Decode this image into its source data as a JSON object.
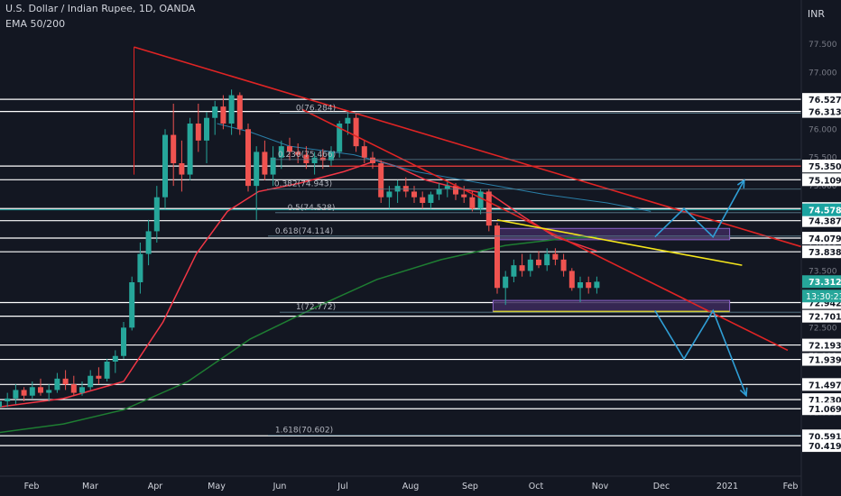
{
  "header": {
    "title": "U.S. Dollar / Indian Rupee, 1D, OANDA",
    "indicator": "EMA 50/200",
    "currency": "INR"
  },
  "colors": {
    "background": "#131722",
    "up": "#26a69a",
    "down": "#ef5350",
    "trendline": "#e02424",
    "ema50": "#f23645",
    "ema200": "#1e7d32",
    "level": "#ffffff",
    "fib_text": "#b2b5be",
    "yellow": "#f5e61b",
    "arrow": "#2f9ed5",
    "zone_fill": "#3d2a5c",
    "zone_border": "#8c64c8",
    "price_tag": "#26a69a",
    "level_tag_teal": "#1aa3a0",
    "level_tag_red": "#ef5350"
  },
  "chart_data": {
    "type": "candlestick",
    "y_axis_ticks": [
      77.5,
      77.0,
      76.5,
      76.0,
      75.5,
      75.0,
      74.5,
      74.0,
      73.5,
      73.0,
      72.5,
      72.0,
      71.5,
      71.0,
      70.5
    ],
    "ylim": [
      70.3,
      78.1
    ],
    "x_axis_labels": [
      "Feb",
      "Mar",
      "Apr",
      "May",
      "Jun",
      "Jul",
      "Aug",
      "Sep",
      "Oct",
      "Nov",
      "Dec",
      "2021",
      "Feb"
    ],
    "horizontal_levels": [
      76.527,
      76.313,
      75.35,
      75.109,
      74.601,
      74.387,
      74.079,
      73.838,
      72.942,
      72.701,
      72.193,
      71.939,
      71.497,
      71.23,
      71.069,
      70.591,
      70.419
    ],
    "colored_levels": [
      {
        "label": "74.578",
        "kind": "teal"
      },
      {
        "label": "75.350",
        "kind": "red"
      }
    ],
    "current_price": "73.312",
    "countdown": "13:30:23",
    "fib_levels": [
      {
        "label": "0(76.284)",
        "value": 76.284
      },
      {
        "label": "0.236(75.466)",
        "value": 75.466
      },
      {
        "label": "0.382(74.943)",
        "value": 74.943
      },
      {
        "label": "0.5(74.528)",
        "value": 74.528
      },
      {
        "label": "0.618(74.114)",
        "value": 74.114
      },
      {
        "label": "1(72.772)",
        "value": 72.772
      },
      {
        "label": "1.618(70.602)",
        "value": 70.602
      }
    ],
    "zones": [
      {
        "date_from": "2020-08-28",
        "date_to": "2020-12-18",
        "low": 74.05,
        "high": 74.25
      },
      {
        "date_from": "2020-08-26",
        "date_to": "2020-12-18",
        "low": 72.78,
        "high": 72.98
      }
    ],
    "trendlines": [
      {
        "color": "trendline",
        "from": {
          "date": "2020-03-06",
          "price": 77.45
        },
        "to": {
          "date": "2021-02-25",
          "price": 73.55
        }
      },
      {
        "color": "trendline",
        "from": {
          "date": "2020-05-26",
          "price": 76.35
        },
        "to": {
          "date": "2021-01-15",
          "price": 72.1
        }
      },
      {
        "color": "yellow",
        "from": {
          "date": "2020-08-28",
          "price": 74.4
        },
        "to": {
          "date": "2020-12-24",
          "price": 73.6
        }
      }
    ],
    "projections": [
      [
        [
          "2020-11-12",
          74.1
        ],
        [
          "2020-11-26",
          74.6
        ],
        [
          "2020-12-10",
          74.1
        ],
        [
          "2020-12-25",
          75.1
        ]
      ],
      [
        [
          "2020-11-12",
          72.8
        ],
        [
          "2020-11-26",
          71.95
        ],
        [
          "2020-12-10",
          72.8
        ],
        [
          "2020-12-26",
          71.3
        ]
      ]
    ],
    "ohlc": [
      [
        "2020-01-01",
        71.1,
        71.25,
        71.0,
        71.2
      ],
      [
        "2020-01-05",
        71.2,
        71.35,
        71.1,
        71.25
      ],
      [
        "2020-01-09",
        71.25,
        71.5,
        71.15,
        71.4
      ],
      [
        "2020-01-13",
        71.4,
        71.45,
        71.2,
        71.3
      ],
      [
        "2020-01-17",
        71.3,
        71.55,
        71.25,
        71.45
      ],
      [
        "2020-01-21",
        71.45,
        71.6,
        71.3,
        71.35
      ],
      [
        "2020-01-25",
        71.35,
        71.5,
        71.2,
        71.4
      ],
      [
        "2020-01-29",
        71.4,
        71.7,
        71.35,
        71.6
      ],
      [
        "2020-02-02",
        71.6,
        71.75,
        71.4,
        71.5
      ],
      [
        "2020-02-06",
        71.5,
        71.65,
        71.3,
        71.35
      ],
      [
        "2020-02-10",
        71.35,
        71.55,
        71.3,
        71.45
      ],
      [
        "2020-02-14",
        71.45,
        71.75,
        71.4,
        71.65
      ],
      [
        "2020-02-18",
        71.65,
        71.8,
        71.5,
        71.6
      ],
      [
        "2020-02-22",
        71.6,
        71.95,
        71.55,
        71.9
      ],
      [
        "2020-02-26",
        71.9,
        72.1,
        71.7,
        72.0
      ],
      [
        "2020-03-01",
        72.0,
        72.6,
        71.95,
        72.5
      ],
      [
        "2020-03-05",
        72.5,
        73.4,
        72.45,
        73.3
      ],
      [
        "2020-03-09",
        73.3,
        74.0,
        73.1,
        73.8
      ],
      [
        "2020-03-13",
        73.8,
        74.4,
        73.6,
        74.2
      ],
      [
        "2020-03-17",
        74.2,
        75.0,
        74.0,
        74.8
      ],
      [
        "2020-03-21",
        74.8,
        76.0,
        74.6,
        75.9
      ],
      [
        "2020-03-25",
        75.9,
        76.45,
        75.0,
        75.4
      ],
      [
        "2020-03-29",
        75.4,
        75.8,
        74.9,
        75.2
      ],
      [
        "2020-04-02",
        75.2,
        76.2,
        75.1,
        76.1
      ],
      [
        "2020-04-06",
        76.1,
        76.45,
        75.6,
        75.8
      ],
      [
        "2020-04-10",
        75.8,
        76.3,
        75.4,
        76.2
      ],
      [
        "2020-04-14",
        76.2,
        76.5,
        75.9,
        76.4
      ],
      [
        "2020-04-18",
        76.4,
        76.6,
        76.0,
        76.1
      ],
      [
        "2020-04-22",
        76.1,
        76.7,
        75.9,
        76.6
      ],
      [
        "2020-04-26",
        76.6,
        76.65,
        75.9,
        76.0
      ],
      [
        "2020-04-30",
        76.0,
        76.1,
        74.9,
        75.0
      ],
      [
        "2020-05-04",
        75.0,
        75.7,
        74.4,
        75.6
      ],
      [
        "2020-05-08",
        75.6,
        75.8,
        75.1,
        75.2
      ],
      [
        "2020-05-12",
        75.2,
        75.7,
        75.0,
        75.5
      ],
      [
        "2020-05-16",
        75.5,
        75.8,
        75.3,
        75.7
      ],
      [
        "2020-05-20",
        75.7,
        75.85,
        75.45,
        75.6
      ],
      [
        "2020-05-24",
        75.6,
        75.75,
        75.4,
        75.55
      ],
      [
        "2020-05-28",
        75.55,
        75.7,
        75.3,
        75.4
      ],
      [
        "2020-06-01",
        75.4,
        75.6,
        75.2,
        75.5
      ],
      [
        "2020-06-05",
        75.5,
        75.65,
        75.3,
        75.45
      ],
      [
        "2020-06-09",
        75.45,
        75.7,
        75.35,
        75.6
      ],
      [
        "2020-06-13",
        75.6,
        76.15,
        75.5,
        76.1
      ],
      [
        "2020-06-17",
        76.1,
        76.3,
        75.9,
        76.2
      ],
      [
        "2020-06-21",
        76.2,
        76.28,
        75.6,
        75.7
      ],
      [
        "2020-06-25",
        75.7,
        75.8,
        75.4,
        75.5
      ],
      [
        "2020-06-29",
        75.5,
        75.6,
        75.3,
        75.4
      ],
      [
        "2020-07-03",
        75.4,
        75.45,
        74.7,
        74.8
      ],
      [
        "2020-07-07",
        74.8,
        75.0,
        74.6,
        74.9
      ],
      [
        "2020-07-11",
        74.9,
        75.1,
        74.7,
        75.0
      ],
      [
        "2020-07-15",
        75.0,
        75.15,
        74.8,
        74.9
      ],
      [
        "2020-07-19",
        74.9,
        75.0,
        74.7,
        74.8
      ],
      [
        "2020-07-23",
        74.8,
        74.9,
        74.6,
        74.7
      ],
      [
        "2020-07-27",
        74.7,
        74.9,
        74.6,
        74.85
      ],
      [
        "2020-07-31",
        74.85,
        75.05,
        74.75,
        74.95
      ],
      [
        "2020-08-04",
        74.95,
        75.1,
        74.8,
        75.0
      ],
      [
        "2020-08-08",
        75.0,
        75.05,
        74.75,
        74.85
      ],
      [
        "2020-08-12",
        74.85,
        75.0,
        74.7,
        74.8
      ],
      [
        "2020-08-16",
        74.8,
        74.9,
        74.55,
        74.6
      ],
      [
        "2020-08-20",
        74.6,
        74.95,
        74.5,
        74.9
      ],
      [
        "2020-08-24",
        74.9,
        74.95,
        74.2,
        74.3
      ],
      [
        "2020-08-28",
        74.3,
        74.35,
        73.1,
        73.2
      ],
      [
        "2020-09-01",
        73.2,
        73.5,
        72.9,
        73.4
      ],
      [
        "2020-09-05",
        73.4,
        73.7,
        73.3,
        73.6
      ],
      [
        "2020-09-09",
        73.6,
        73.8,
        73.4,
        73.5
      ],
      [
        "2020-09-13",
        73.5,
        73.8,
        73.4,
        73.7
      ],
      [
        "2020-09-17",
        73.7,
        73.85,
        73.55,
        73.6
      ],
      [
        "2020-09-21",
        73.6,
        73.9,
        73.5,
        73.8
      ],
      [
        "2020-09-25",
        73.8,
        73.9,
        73.6,
        73.7
      ],
      [
        "2020-09-29",
        73.7,
        73.8,
        73.4,
        73.5
      ],
      [
        "2020-10-03",
        73.5,
        73.55,
        73.15,
        73.2
      ],
      [
        "2020-10-07",
        73.2,
        73.4,
        72.95,
        73.3
      ],
      [
        "2020-10-11",
        73.3,
        73.4,
        73.1,
        73.2
      ],
      [
        "2020-10-15",
        73.2,
        73.4,
        73.1,
        73.31
      ]
    ],
    "ema50": [
      [
        "2020-01-01",
        71.1
      ],
      [
        "2020-02-01",
        71.25
      ],
      [
        "2020-03-01",
        71.55
      ],
      [
        "2020-03-20",
        72.6
      ],
      [
        "2020-04-05",
        73.8
      ],
      [
        "2020-04-20",
        74.55
      ],
      [
        "2020-05-05",
        74.9
      ],
      [
        "2020-05-25",
        75.05
      ],
      [
        "2020-06-15",
        75.25
      ],
      [
        "2020-07-01",
        75.45
      ],
      [
        "2020-07-10",
        75.35
      ],
      [
        "2020-07-25",
        75.1
      ],
      [
        "2020-08-10",
        74.95
      ],
      [
        "2020-08-25",
        74.85
      ],
      [
        "2020-09-10",
        74.45
      ],
      [
        "2020-09-25",
        74.1
      ],
      [
        "2020-10-15",
        73.85
      ]
    ],
    "ema200": [
      [
        "2020-01-01",
        70.65
      ],
      [
        "2020-02-01",
        70.8
      ],
      [
        "2020-03-01",
        71.05
      ],
      [
        "2020-04-01",
        71.55
      ],
      [
        "2020-05-01",
        72.3
      ],
      [
        "2020-06-01",
        72.85
      ],
      [
        "2020-07-01",
        73.35
      ],
      [
        "2020-08-01",
        73.7
      ],
      [
        "2020-09-01",
        73.95
      ],
      [
        "2020-10-01",
        74.08
      ],
      [
        "2020-10-15",
        74.1
      ]
    ],
    "ema_blue": [
      [
        "2020-04-15",
        76.1
      ],
      [
        "2020-05-01",
        75.95
      ],
      [
        "2020-05-20",
        75.7
      ],
      [
        "2020-06-20",
        75.55
      ],
      [
        "2020-07-20",
        75.25
      ],
      [
        "2020-08-20",
        75.05
      ],
      [
        "2020-09-20",
        74.85
      ],
      [
        "2020-10-20",
        74.7
      ],
      [
        "2020-11-10",
        74.55
      ]
    ]
  }
}
